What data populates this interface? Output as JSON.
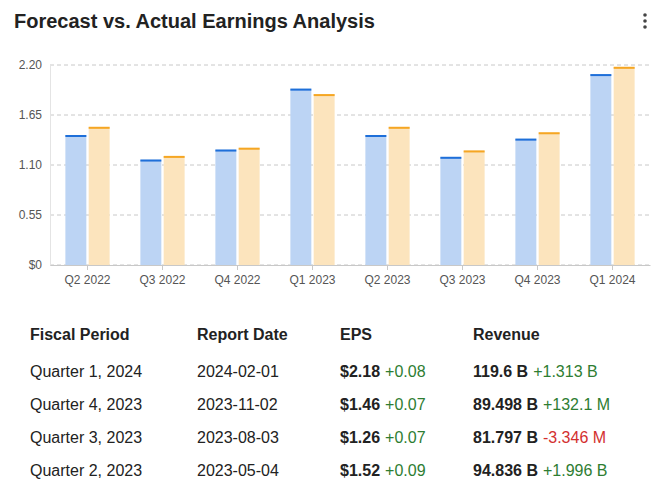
{
  "chart_data": {
    "type": "bar",
    "title": "Forecast vs. Actual Earnings Analysis",
    "categories": [
      "Q2 2022",
      "Q3 2022",
      "Q4 2022",
      "Q1 2023",
      "Q2 2023",
      "Q3 2023",
      "Q4 2023",
      "Q1 2024"
    ],
    "series": [
      {
        "color": "#1e6fd9",
        "values": [
          1.43,
          1.16,
          1.27,
          1.94,
          1.43,
          1.19,
          1.39,
          2.1
        ]
      },
      {
        "color": "#f5a623",
        "values": [
          1.52,
          1.2,
          1.29,
          1.88,
          1.52,
          1.26,
          1.46,
          2.18
        ]
      }
    ],
    "ylim": [
      0,
      2.2
    ],
    "yticks": [
      {
        "value": 0,
        "label": "$0"
      },
      0.55,
      {
        "value": 1.1,
        "label": "1.10"
      },
      1.65,
      {
        "value": 2.2,
        "label": "2.20"
      }
    ],
    "grid": true
  },
  "table": {
    "columns": [
      "Fiscal Period",
      "Report Date",
      "EPS",
      "Revenue"
    ],
    "rows": [
      [
        "Quarter 1, 2024",
        "2024-02-01",
        "$2.18",
        "+0.08",
        "119.6 B",
        "+1.313 B"
      ],
      [
        "Quarter 4, 2023",
        "2023-11-02",
        "$1.46",
        "+0.07",
        "89.498 B",
        "+132.1 M"
      ],
      [
        "Quarter 3, 2023",
        "2023-08-03",
        "$1.26",
        "+0.07",
        "81.797 B",
        "-3.346 M"
      ],
      [
        "Quarter 2, 2023",
        "2023-05-04",
        "$1.52",
        "+0.09",
        "94.836 B",
        "+1.996 B"
      ]
    ]
  }
}
